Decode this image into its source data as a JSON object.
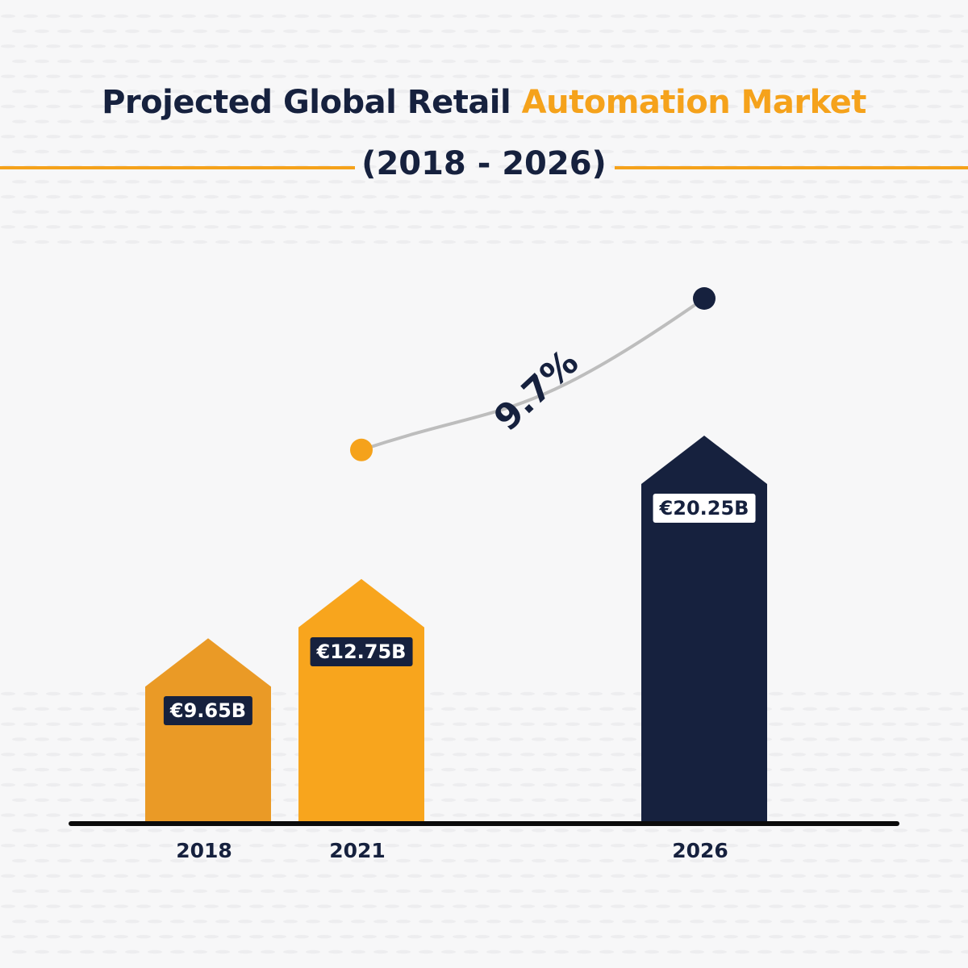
{
  "title": {
    "part1": "Projected Global Retail",
    "part2": "Automation Market",
    "subtitle": "(2018 - 2026)"
  },
  "colors": {
    "navy": "#16213e",
    "orange": "#f5a21b",
    "orange_dark": "#ea9a26",
    "rule": "#f5a21b",
    "trend_line": "#bdbdbd"
  },
  "chart_data": {
    "type": "bar",
    "categories": [
      "2018",
      "2021",
      "2026"
    ],
    "values": [
      9.65,
      12.75,
      20.25
    ],
    "data_labels": [
      "€9.65B",
      "€12.75B",
      "€20.25B"
    ],
    "bar_colors": [
      "#ea9a26",
      "#f8a51d",
      "#16213e"
    ],
    "annotation": {
      "text": "9.7%",
      "from_category": "2021",
      "to_category": "2026"
    },
    "grid": false,
    "legend": "none"
  }
}
